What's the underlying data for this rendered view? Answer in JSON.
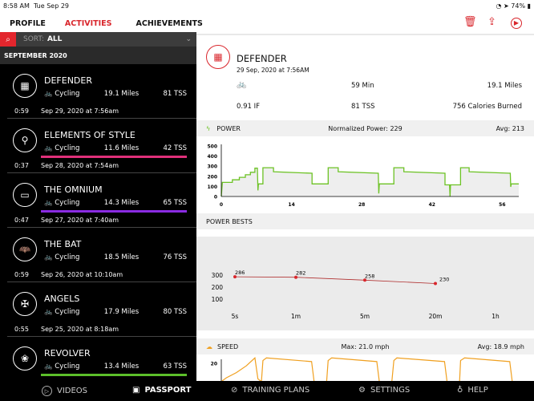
{
  "status": {
    "time": "8:58 AM",
    "date": "Tue Sep 29",
    "battery": "74%"
  },
  "nav": {
    "tabs": [
      "PROFILE",
      "ACTIVITIES",
      "ACHIEVEMENTS"
    ],
    "active": 1
  },
  "toolbar": {
    "icons": [
      "trash-icon",
      "share-icon",
      "play-icon"
    ]
  },
  "sort": {
    "label": "SORT:",
    "value": "ALL"
  },
  "section": "SEPTEMBER 2020",
  "activities": [
    {
      "name": "DEFENDER",
      "type": "Cycling",
      "miles": "19.1 Miles",
      "tss": "81 TSS",
      "duration": "0:59",
      "date": "Sep 29, 2020 at 7:56am",
      "stripe": ""
    },
    {
      "name": "ELEMENTS OF STYLE",
      "type": "Cycling",
      "miles": "11.6 Miles",
      "tss": "42 TSS",
      "duration": "0:37",
      "date": "Sep 28, 2020 at 7:54am",
      "stripe": "#e0307a"
    },
    {
      "name": "THE OMNIUM",
      "type": "Cycling",
      "miles": "14.3 Miles",
      "tss": "65 TSS",
      "duration": "0:47",
      "date": "Sep 27, 2020 at 7:40am",
      "stripe": "#8a2be2"
    },
    {
      "name": "THE BAT",
      "type": "Cycling",
      "miles": "18.5 Miles",
      "tss": "76 TSS",
      "duration": "0:59",
      "date": "Sep 26, 2020 at 10:10am",
      "stripe": ""
    },
    {
      "name": "ANGELS",
      "type": "Cycling",
      "miles": "17.9 Miles",
      "tss": "80 TSS",
      "duration": "0:55",
      "date": "Sep 25, 2020 at 8:18am",
      "stripe": ""
    },
    {
      "name": "REVOLVER",
      "type": "Cycling",
      "miles": "13.4 Miles",
      "tss": "63 TSS",
      "duration": "",
      "date": "",
      "stripe": "#5cbf2a"
    }
  ],
  "detail": {
    "name": "DEFENDER",
    "date": "29 Sep, 2020 at 7:56AM",
    "duration": "59 Min",
    "distance": "19.1 Miles",
    "if": "0.91 IF",
    "tss": "81 TSS",
    "calories": "756 Calories Burned"
  },
  "power": {
    "title": "POWER",
    "np": "Normalized Power: 229",
    "avg": "Avg: 213"
  },
  "bests": {
    "title": "POWER BESTS"
  },
  "speed": {
    "title": "SPEED",
    "max": "Max: 21.0 mph",
    "avg": "Avg: 18.9 mph"
  },
  "bottom": {
    "videos": "VIDEOS",
    "passport": "PASSPORT",
    "training": "TRAINING PLANS",
    "settings": "SETTINGS",
    "help": "HELP"
  },
  "colors": {
    "accent": "#d9262c",
    "power": "#6cc224",
    "speed": "#f0a020"
  },
  "chart_data": [
    {
      "type": "area",
      "title": "POWER",
      "yticks": [
        0,
        100,
        200,
        300,
        400,
        500
      ],
      "xticks": [
        0,
        14,
        28,
        42,
        56
      ],
      "ylim": [
        0,
        500
      ],
      "xlim": [
        0,
        59.3
      ],
      "x": [
        0,
        0.2,
        0.3,
        2.2,
        2.2,
        3.6,
        3.6,
        4.8,
        4.8,
        5.8,
        5.8,
        6.7,
        6.7,
        7.2,
        7.3,
        7.4,
        8.3,
        8.3,
        10.4,
        10.4,
        18.1,
        18.1,
        21.3,
        21.3,
        23.3,
        23.3,
        31.3,
        31.4,
        31.5,
        34.4,
        34.4,
        36.4,
        36.4,
        44.6,
        44.6,
        45.5,
        45.6,
        45.7,
        47.7,
        47.7,
        49.4,
        49.4,
        57.6,
        57.7,
        57.8,
        59.3
      ],
      "y": [
        0,
        140,
        140,
        140,
        165,
        165,
        190,
        190,
        215,
        215,
        240,
        240,
        280,
        280,
        60,
        125,
        125,
        285,
        285,
        245,
        230,
        125,
        125,
        285,
        285,
        245,
        230,
        30,
        125,
        125,
        285,
        285,
        245,
        230,
        115,
        115,
        0,
        115,
        115,
        285,
        285,
        245,
        230,
        95,
        125,
        125
      ]
    },
    {
      "type": "line",
      "title": "POWER BESTS",
      "categories": [
        "5s",
        "1m",
        "5m",
        "20m",
        "1h"
      ],
      "values": [
        286,
        282,
        258,
        230,
        null
      ],
      "yticks": [
        100,
        200,
        300
      ]
    },
    {
      "type": "line",
      "title": "SPEED",
      "yticks": [
        20
      ],
      "xlim": [
        0,
        59.3
      ],
      "ylim": [
        16,
        21.5
      ],
      "x": [
        0,
        1,
        3,
        5,
        6.7,
        7.3,
        8,
        8.3,
        9,
        18,
        18.5,
        21,
        21.3,
        22,
        31,
        31.5,
        34,
        34.4,
        35,
        44.5,
        45,
        47.5,
        47.7,
        48.5,
        57.5,
        58,
        59.3
      ],
      "y": [
        16.5,
        17.2,
        18.2,
        19.5,
        21,
        17,
        16.5,
        20.5,
        21,
        20.3,
        16.5,
        16.5,
        20.5,
        21,
        20.3,
        16.5,
        16.5,
        20.5,
        21,
        20.3,
        16.5,
        16.5,
        20.5,
        21,
        20.3,
        16.5,
        16.5
      ]
    }
  ]
}
